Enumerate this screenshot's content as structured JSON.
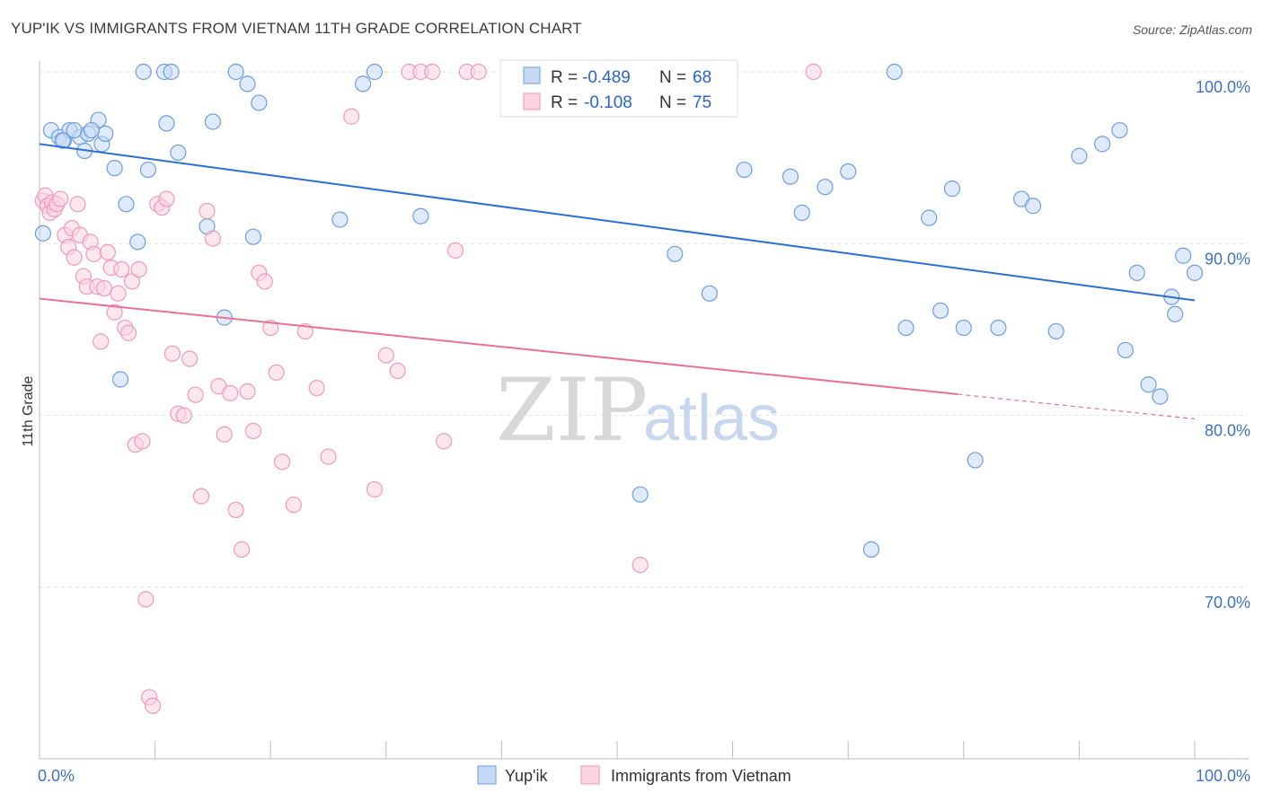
{
  "header": {
    "title": "YUP'IK VS IMMIGRANTS FROM VIETNAM 11TH GRADE CORRELATION CHART",
    "source": "Source: ZipAtlas.com"
  },
  "watermark": {
    "zip": "ZIP",
    "atlas": "atlas"
  },
  "legend": {
    "r_label": "R =",
    "n_label": "N =",
    "rows": [
      {
        "r": "-0.489",
        "n": "68",
        "color": "#7fa9e8"
      },
      {
        "r": "-0.108",
        "n": "75",
        "color": "#f2a2bd"
      }
    ]
  },
  "chart_data": {
    "type": "scatter",
    "title": "YUP'IK VS IMMIGRANTS FROM VIETNAM 11TH GRADE CORRELATION CHART",
    "xlabel": "",
    "ylabel": "11th Grade",
    "xlim": [
      0,
      100
    ],
    "ylim": [
      60,
      100
    ],
    "x_tick_labels": [
      "0.0%",
      "100.0%"
    ],
    "y_ticks": [
      70,
      80,
      90,
      100
    ],
    "y_tick_labels": [
      "70.0%",
      "80.0%",
      "90.0%",
      "100.0%"
    ],
    "grid": true,
    "legend_position": "bottom",
    "series": [
      {
        "name": "Yup'ik",
        "color": "#7fa9e8",
        "trend_color": "#2b6fd1",
        "trend": {
          "x": [
            0,
            100
          ],
          "y": [
            95.8,
            86.7
          ]
        },
        "x": [
          0.3,
          1,
          1.7,
          2.1,
          2.6,
          3.5,
          3.9,
          4.2,
          5.1,
          5.4,
          5.7,
          6.5,
          7.5,
          8.5,
          9.0,
          9.4,
          10.8,
          11.0,
          11.4,
          12.0,
          14.5,
          15.0,
          16.0,
          17.0,
          18.0,
          19.0,
          26.0,
          28.0,
          41.0,
          52.0,
          55.0,
          58.0,
          61.0,
          65.0,
          66.0,
          68.0,
          70.0,
          72.0,
          74.0,
          77.0,
          78.0,
          79.0,
          80.0,
          81.0,
          83.0,
          85.0,
          86.0,
          88.0,
          90.0,
          92.0,
          94.0,
          95.0,
          96.0,
          97.0,
          98.0,
          98.3,
          99.0,
          100.0,
          2.0,
          3.0,
          4.5,
          7.0,
          18.5,
          29.0,
          33.0,
          57.0,
          75.0,
          93.5
        ],
        "y": [
          90.6,
          96.6,
          96.2,
          96.0,
          96.6,
          96.2,
          95.4,
          96.4,
          97.2,
          95.8,
          96.4,
          94.4,
          92.3,
          90.1,
          100,
          94.3,
          100,
          97,
          100,
          95.3,
          91,
          97.1,
          85.7,
          100,
          99.3,
          98.2,
          91.4,
          99.3,
          100,
          75.4,
          89.4,
          87.1,
          94.3,
          93.9,
          91.8,
          93.3,
          94.2,
          72.2,
          100,
          91.5,
          86.1,
          93.2,
          85.1,
          77.4,
          85.1,
          92.6,
          92.2,
          84.9,
          95.1,
          95.8,
          83.8,
          88.3,
          81.8,
          81.1,
          86.9,
          85.9,
          89.3,
          88.3,
          96.0,
          96.6,
          96.6,
          82.1,
          90.4,
          100,
          91.6,
          100,
          85.1,
          96.6
        ],
        "n": 68
      },
      {
        "name": "Immigrants from Vietnam",
        "color": "#f2a2bd",
        "trend_color": "#e8709a",
        "trend": {
          "x": [
            0,
            100
          ],
          "y": [
            86.8,
            79.8
          ],
          "solid_until_x": 79.5
        },
        "x": [
          0.3,
          0.5,
          0.7,
          0.9,
          1.1,
          1.3,
          1.5,
          1.8,
          2.2,
          2.5,
          2.8,
          3.0,
          3.3,
          3.5,
          3.8,
          4.1,
          4.4,
          4.7,
          5.0,
          5.3,
          5.6,
          5.9,
          6.2,
          6.5,
          6.8,
          7.1,
          7.4,
          7.7,
          8.0,
          8.3,
          8.6,
          8.9,
          9.2,
          9.5,
          9.8,
          10.2,
          10.6,
          11.0,
          11.5,
          12.0,
          12.5,
          13.0,
          13.5,
          14.0,
          14.5,
          15.0,
          15.5,
          16.0,
          16.5,
          17.0,
          17.5,
          18.0,
          18.5,
          19.0,
          19.5,
          20.0,
          20.5,
          21.0,
          22.0,
          23.0,
          24.0,
          25.0,
          27.0,
          29.0,
          30.0,
          31.0,
          32.0,
          33.0,
          34.0,
          35.0,
          36.0,
          37.0,
          38.0,
          52.0,
          67.0
        ],
        "y": [
          92.5,
          92.8,
          92.2,
          91.8,
          92.4,
          92.0,
          92.3,
          92.6,
          90.5,
          89.8,
          90.9,
          89.2,
          92.3,
          90.5,
          88.1,
          87.5,
          90.1,
          89.4,
          87.5,
          84.3,
          87.4,
          89.5,
          88.6,
          86.0,
          87.1,
          88.5,
          85.1,
          84.8,
          87.8,
          78.3,
          88.5,
          78.5,
          69.3,
          63.6,
          63.1,
          92.3,
          92.1,
          92.6,
          83.6,
          80.1,
          80.0,
          83.3,
          81.2,
          75.3,
          91.9,
          90.3,
          81.7,
          78.9,
          81.3,
          74.5,
          72.2,
          81.4,
          79.1,
          88.3,
          87.8,
          85.1,
          82.5,
          77.3,
          74.8,
          84.9,
          81.6,
          77.6,
          97.4,
          75.7,
          83.5,
          82.6,
          100,
          100,
          100,
          78.5,
          89.6,
          100,
          100,
          71.3,
          100
        ],
        "n": 75
      }
    ]
  }
}
